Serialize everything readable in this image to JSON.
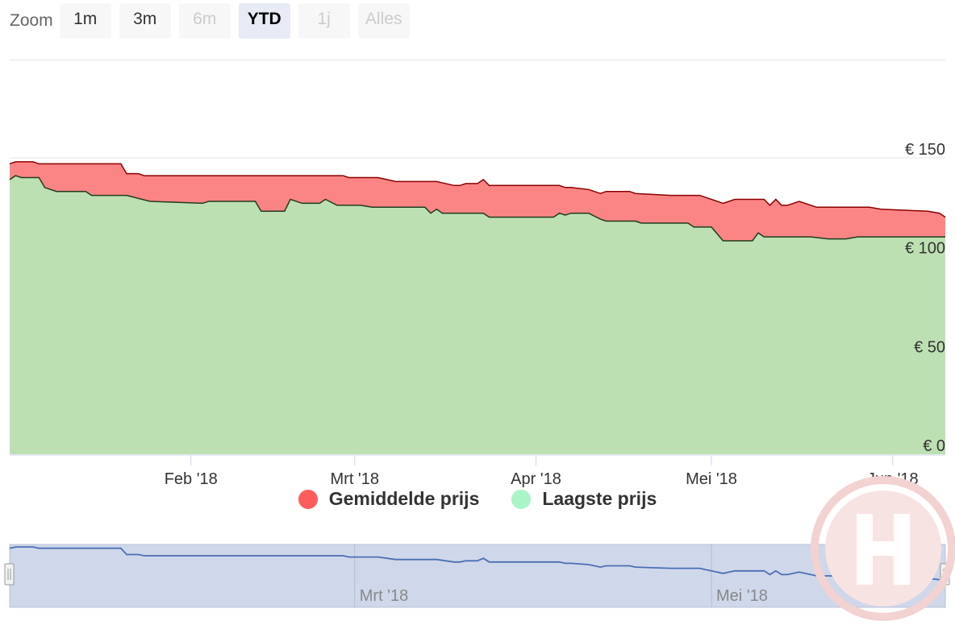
{
  "zoom": {
    "label": "Zoom",
    "buttons": [
      {
        "label": "1m",
        "state": "normal"
      },
      {
        "label": "3m",
        "state": "normal"
      },
      {
        "label": "6m",
        "state": "disabled"
      },
      {
        "label": "YTD",
        "state": "active"
      },
      {
        "label": "1j",
        "state": "disabled"
      },
      {
        "label": "Alles",
        "state": "disabled"
      }
    ]
  },
  "colors": {
    "avg_fill": "#fb8585",
    "avg_line": "#8b0000",
    "low_fill": "#bde0b3",
    "low_line": "#1f3d1f",
    "legend_avg": "#ff5c5c",
    "legend_low": "#a8f5c8",
    "navigator_fill": "#cfd7ea",
    "navigator_line": "#4a6fb5"
  },
  "chart_data": {
    "type": "area",
    "title": "",
    "xlabel": "",
    "ylabel": "",
    "x_range": [
      "2018-01-01",
      "2018-06-10"
    ],
    "ylim": [
      0,
      150
    ],
    "y_ticks": [
      {
        "value": 150,
        "label": "€ 150"
      },
      {
        "value": 100,
        "label": "€ 100"
      },
      {
        "value": 50,
        "label": "€ 50"
      },
      {
        "value": 0,
        "label": "€ 0"
      }
    ],
    "x_ticks": [
      {
        "date": "2018-02-01",
        "label": "Feb '18"
      },
      {
        "date": "2018-03-01",
        "label": "Mrt '18"
      },
      {
        "date": "2018-04-01",
        "label": "Apr '18"
      },
      {
        "date": "2018-05-01",
        "label": "Mei '18"
      },
      {
        "date": "2018-06-01",
        "label": "Jun '18"
      }
    ],
    "grid": true,
    "legend_position": "bottom-center",
    "series": [
      {
        "name": "Gemiddelde prijs",
        "points": [
          [
            "2018-01-01",
            147
          ],
          [
            "2018-01-02",
            148
          ],
          [
            "2018-01-05",
            148
          ],
          [
            "2018-01-06",
            147
          ],
          [
            "2018-01-20",
            147
          ],
          [
            "2018-01-21",
            142
          ],
          [
            "2018-01-23",
            142
          ],
          [
            "2018-01-24",
            141
          ],
          [
            "2018-02-06",
            141
          ],
          [
            "2018-02-16",
            141
          ],
          [
            "2018-02-27",
            141
          ],
          [
            "2018-02-28",
            140
          ],
          [
            "2018-03-05",
            140
          ],
          [
            "2018-03-08",
            138
          ],
          [
            "2018-03-15",
            138
          ],
          [
            "2018-03-18",
            136
          ],
          [
            "2018-03-19",
            136
          ],
          [
            "2018-03-20",
            137
          ],
          [
            "2018-03-22",
            137
          ],
          [
            "2018-03-23",
            139
          ],
          [
            "2018-03-24",
            136
          ],
          [
            "2018-04-05",
            136
          ],
          [
            "2018-04-06",
            135
          ],
          [
            "2018-04-07",
            135
          ],
          [
            "2018-04-10",
            134
          ],
          [
            "2018-04-12",
            132
          ],
          [
            "2018-04-13",
            133
          ],
          [
            "2018-04-17",
            133
          ],
          [
            "2018-04-18",
            132
          ],
          [
            "2018-04-24",
            131
          ],
          [
            "2018-04-29",
            131
          ],
          [
            "2018-04-30",
            130
          ],
          [
            "2018-05-03",
            127
          ],
          [
            "2018-05-05",
            129
          ],
          [
            "2018-05-10",
            129
          ],
          [
            "2018-05-11",
            126
          ],
          [
            "2018-05-12",
            129
          ],
          [
            "2018-05-13",
            126
          ],
          [
            "2018-05-14",
            126
          ],
          [
            "2018-05-16",
            128
          ],
          [
            "2018-05-19",
            125
          ],
          [
            "2018-05-28",
            125
          ],
          [
            "2018-05-30",
            124
          ],
          [
            "2018-06-07",
            123
          ],
          [
            "2018-06-09",
            122
          ],
          [
            "2018-06-10",
            120
          ]
        ]
      },
      {
        "name": "Laagste prijs",
        "points": [
          [
            "2018-01-01",
            139
          ],
          [
            "2018-01-02",
            141
          ],
          [
            "2018-01-03",
            140
          ],
          [
            "2018-01-06",
            140
          ],
          [
            "2018-01-07",
            135
          ],
          [
            "2018-01-09",
            133
          ],
          [
            "2018-01-14",
            133
          ],
          [
            "2018-01-15",
            131
          ],
          [
            "2018-01-21",
            131
          ],
          [
            "2018-01-25",
            128
          ],
          [
            "2018-02-03",
            127
          ],
          [
            "2018-02-04",
            128
          ],
          [
            "2018-02-12",
            128
          ],
          [
            "2018-02-13",
            123
          ],
          [
            "2018-02-17",
            123
          ],
          [
            "2018-02-18",
            129
          ],
          [
            "2018-02-20",
            127
          ],
          [
            "2018-02-23",
            127
          ],
          [
            "2018-02-24",
            129
          ],
          [
            "2018-02-26",
            126
          ],
          [
            "2018-03-02",
            126
          ],
          [
            "2018-03-04",
            125
          ],
          [
            "2018-03-13",
            125
          ],
          [
            "2018-03-14",
            122
          ],
          [
            "2018-03-15",
            124
          ],
          [
            "2018-03-16",
            122
          ],
          [
            "2018-03-23",
            122
          ],
          [
            "2018-03-24",
            120
          ],
          [
            "2018-04-04",
            120
          ],
          [
            "2018-04-05",
            122
          ],
          [
            "2018-04-06",
            121
          ],
          [
            "2018-04-07",
            122
          ],
          [
            "2018-04-10",
            122
          ],
          [
            "2018-04-12",
            119
          ],
          [
            "2018-04-13",
            118
          ],
          [
            "2018-04-18",
            118
          ],
          [
            "2018-04-19",
            117
          ],
          [
            "2018-04-27",
            117
          ],
          [
            "2018-04-28",
            115
          ],
          [
            "2018-05-01",
            115
          ],
          [
            "2018-05-03",
            108
          ],
          [
            "2018-05-08",
            108
          ],
          [
            "2018-05-09",
            112
          ],
          [
            "2018-05-10",
            110
          ],
          [
            "2018-05-18",
            110
          ],
          [
            "2018-05-21",
            109
          ],
          [
            "2018-05-24",
            109
          ],
          [
            "2018-05-26",
            110
          ],
          [
            "2018-06-10",
            110
          ]
        ]
      }
    ]
  },
  "navigator": {
    "x_labels": [
      {
        "date": "2018-03-01",
        "label": "Mrt '18"
      },
      {
        "date": "2018-05-01",
        "label": "Mei '18"
      }
    ]
  },
  "watermark_icon": "h-logo-watermark"
}
